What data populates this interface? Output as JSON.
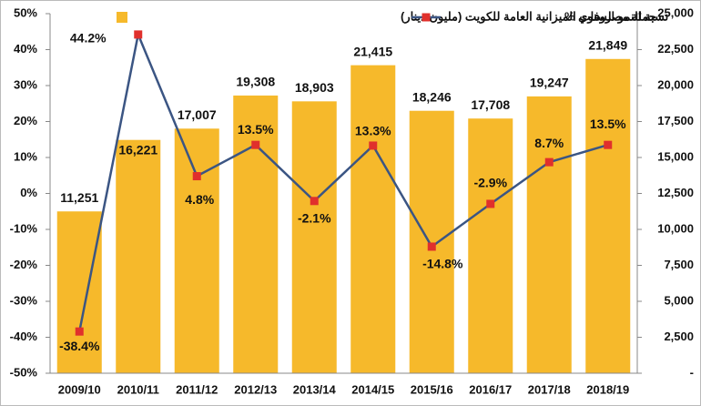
{
  "chart_data": {
    "type": "bar-line",
    "categories": [
      "2009/10",
      "2010/11",
      "2011/12",
      "2012/13",
      "2013/14",
      "2014/15",
      "2015/16",
      "2016/17",
      "2017/18",
      "2018/19"
    ],
    "series": [
      {
        "name": "جملة مصروفات الميزانية العامة للكويت (مليون دينار)",
        "type": "bar",
        "color": "#f6b92b",
        "axis": "y2",
        "values": [
          11251,
          16221,
          17007,
          19308,
          18903,
          21415,
          18246,
          17708,
          19247,
          21849
        ],
        "value_labels": [
          "11,251",
          "16,221",
          "17,007",
          "19,308",
          "18,903",
          "21,415",
          "18,246",
          "17,708",
          "19,247",
          "21,849"
        ]
      },
      {
        "name": "نسبة النمو السنوي %",
        "type": "line",
        "color": "#3b5583",
        "marker_color": "#e0302c",
        "values": [
          -38.4,
          44.2,
          4.8,
          13.5,
          -2.1,
          13.3,
          -14.8,
          -2.9,
          8.7,
          13.5
        ],
        "value_labels": [
          "-38.4%",
          "44.2%",
          "4.8%",
          "13.5%",
          "-2.1%",
          "13.3%",
          "-14.8%",
          "-2.9%",
          "8.7%",
          "13.5%"
        ]
      }
    ],
    "ylim": [
      -50,
      50
    ],
    "yticks": [
      {
        "value": -50,
        "label": "-50%"
      },
      {
        "value": -40,
        "label": "-40%"
      },
      {
        "value": -30,
        "label": "-30%"
      },
      {
        "value": -20,
        "label": "-20%"
      },
      {
        "value": -10,
        "label": "-10%"
      },
      {
        "value": 0,
        "label": "0%"
      },
      {
        "value": 10,
        "label": "10%"
      },
      {
        "value": 20,
        "label": "20%"
      },
      {
        "value": 30,
        "label": "30%"
      },
      {
        "value": 40,
        "label": "40%"
      },
      {
        "value": 50,
        "label": "50%"
      }
    ],
    "y2lim": [
      0,
      25000
    ],
    "y2ticks": [
      {
        "value": 0,
        "label": "-"
      },
      {
        "value": 2500,
        "label": "2,500"
      },
      {
        "value": 5000,
        "label": "5,000"
      },
      {
        "value": 7500,
        "label": "7,500"
      },
      {
        "value": 10000,
        "label": "10,000"
      },
      {
        "value": 12500,
        "label": "12,500"
      },
      {
        "value": 15000,
        "label": "15,000"
      },
      {
        "value": 17500,
        "label": "17,500"
      },
      {
        "value": 20000,
        "label": "20,000"
      },
      {
        "value": 22500,
        "label": "22,500"
      },
      {
        "value": 25000,
        "label": "25,000"
      }
    ]
  }
}
